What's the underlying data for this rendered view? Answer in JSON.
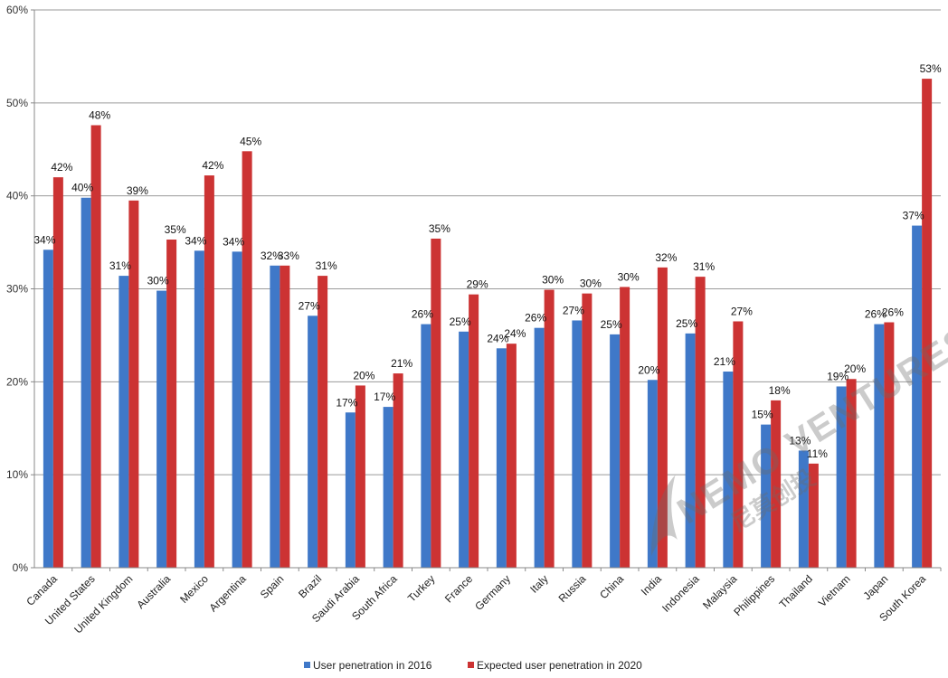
{
  "chart_data": {
    "type": "bar",
    "title": "",
    "xlabel": "",
    "ylabel": "",
    "ylim": [
      0,
      60
    ],
    "y_ticks": [
      "0%",
      "10%",
      "20%",
      "30%",
      "40%",
      "50%",
      "60%"
    ],
    "grid": true,
    "legend_position": "bottom-center",
    "categories": [
      "Canada",
      "United States",
      "United Kingdom",
      "Australia",
      "Mexico",
      "Argentina",
      "Spain",
      "Brazil",
      "Saudi Arabia",
      "South Africa",
      "Turkey",
      "France",
      "Germany",
      "Italy",
      "Russia",
      "China",
      "India",
      "Indonesia",
      "Malaysia",
      "Philippines",
      "Thailand",
      "Vietnam",
      "Japan",
      "South Korea"
    ],
    "series": [
      {
        "name": "User penetration in 2016",
        "color": "#3f78c8",
        "values": [
          34.2,
          39.8,
          31.4,
          29.8,
          34.1,
          34.0,
          32.5,
          27.1,
          16.7,
          17.3,
          26.2,
          25.4,
          23.6,
          25.8,
          26.6,
          25.1,
          20.2,
          25.2,
          21.1,
          15.4,
          12.6,
          19.5,
          26.2,
          36.8
        ],
        "labels": [
          "34%",
          "40%",
          "31%",
          "30%",
          "34%",
          "34%",
          "32%",
          "27%",
          "17%",
          "17%",
          "26%",
          "25%",
          "24%",
          "26%",
          "27%",
          "25%",
          "20%",
          "25%",
          "21%",
          "15%",
          "13%",
          "19%",
          "26%",
          "37%"
        ]
      },
      {
        "name": "Expected user penetration in 2020",
        "color": "#cc3333",
        "values": [
          42.0,
          47.6,
          39.5,
          35.3,
          42.2,
          44.8,
          32.5,
          31.4,
          19.6,
          20.9,
          35.4,
          29.4,
          24.1,
          29.9,
          29.5,
          30.2,
          32.3,
          31.3,
          26.5,
          18.0,
          11.2,
          20.3,
          26.4,
          52.6
        ],
        "labels": [
          "42%",
          "48%",
          "39%",
          "35%",
          "42%",
          "45%",
          "33%",
          "31%",
          "20%",
          "21%",
          "35%",
          "29%",
          "24%",
          "30%",
          "30%",
          "30%",
          "32%",
          "31%",
          "27%",
          "18%",
          "11%",
          "20%",
          "26%",
          "53%"
        ]
      }
    ]
  },
  "watermark": {
    "text": "NEMO VENTURES",
    "text_cn": "尼莫创投"
  }
}
